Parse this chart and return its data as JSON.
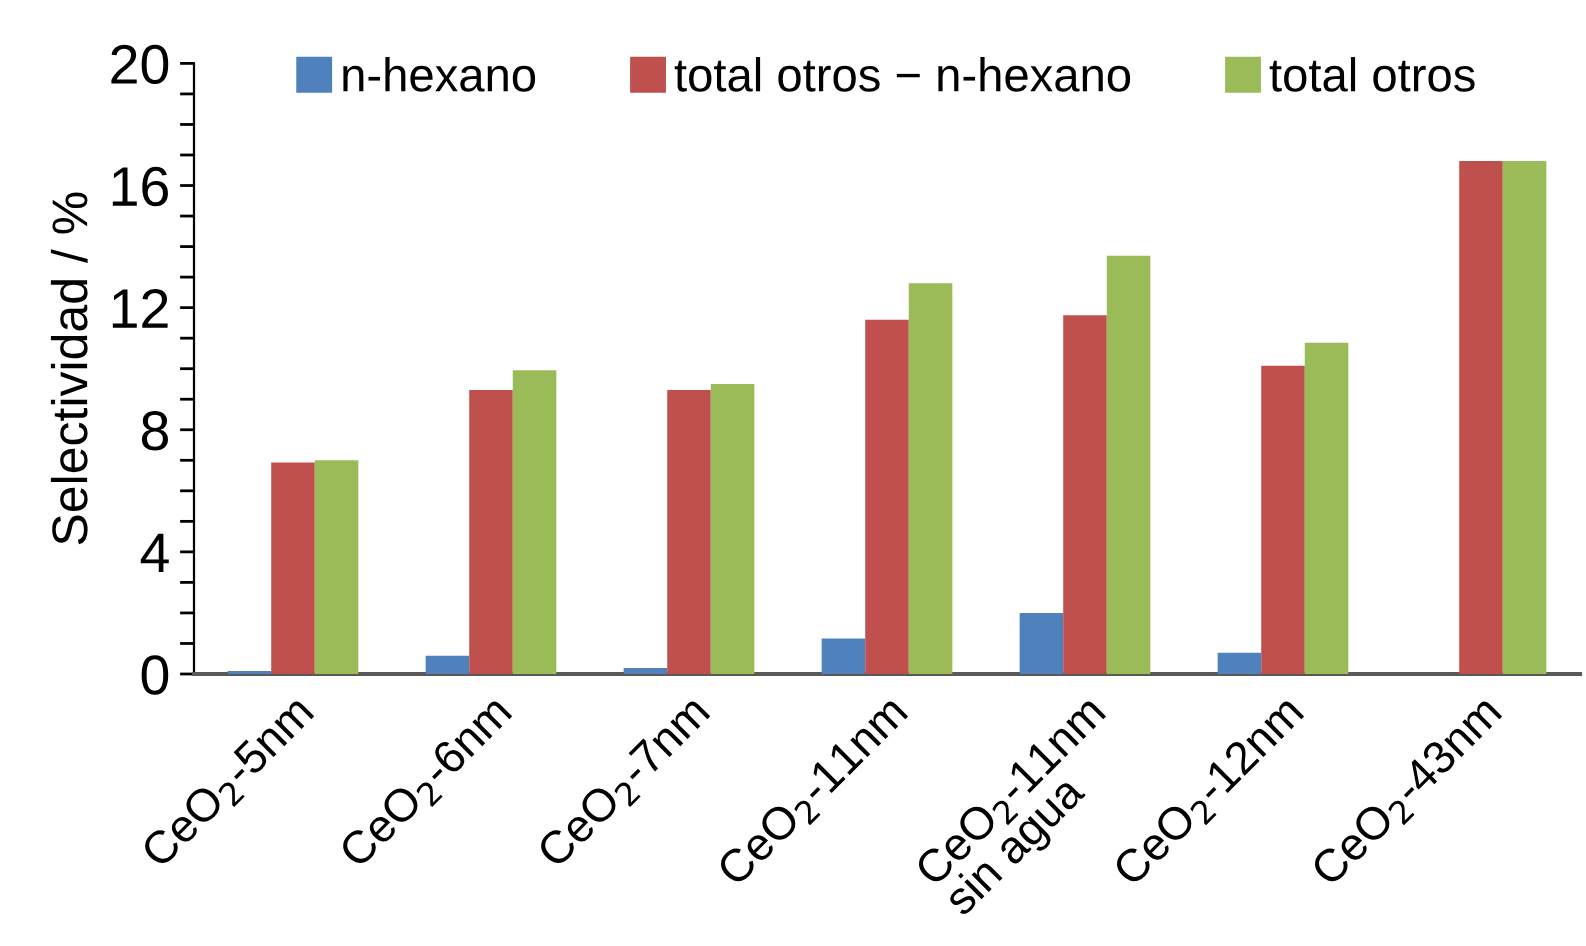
{
  "chart_data": {
    "type": "bar",
    "ylabel": "Selectividad / %",
    "categories": [
      "CeO$_{2}$-5nm",
      "CeO$_{2}$-6nm",
      "CeO$_{2}$-7nm",
      "CeO$_{2}$-11nm",
      "CeO$_{2}$-11nm\nsin agua",
      "CeO$_{2}$-12nm",
      "CeO$_{2}$-43nm"
    ],
    "series": [
      {
        "name": "n-hexano",
        "color": "#4f81bd",
        "values": [
          0.1,
          0.6,
          0.2,
          1.16,
          2.0,
          0.7,
          0
        ]
      },
      {
        "name": "total otros − n-hexano",
        "color": "#c0504d",
        "values": [
          6.93,
          9.3,
          9.3,
          11.6,
          11.75,
          10.1,
          16.8
        ]
      },
      {
        "name": "total otros",
        "color": "#9bbb59",
        "values": [
          7.0,
          9.95,
          9.5,
          12.8,
          13.7,
          10.85,
          16.8
        ]
      }
    ],
    "ylim": [
      0,
      20
    ],
    "yticks": [
      0,
      {
        "value": 1,
        "label": null
      },
      {
        "value": 2,
        "label": null
      },
      {
        "value": 3,
        "label": null
      },
      4,
      {
        "value": 5,
        "label": null
      },
      {
        "value": 6,
        "label": null
      },
      {
        "value": 7,
        "label": null
      },
      8,
      {
        "value": 9,
        "label": null
      },
      {
        "value": 10,
        "label": null
      },
      {
        "value": 11,
        "label": null
      },
      12,
      {
        "value": 13,
        "label": null
      },
      {
        "value": 14,
        "label": null
      },
      {
        "value": 15,
        "label": null
      },
      16,
      {
        "value": 17,
        "label": null
      },
      {
        "value": 18,
        "label": null
      },
      {
        "value": 19,
        "label": null
      },
      20
    ],
    "grid": false,
    "legend": "top"
  }
}
